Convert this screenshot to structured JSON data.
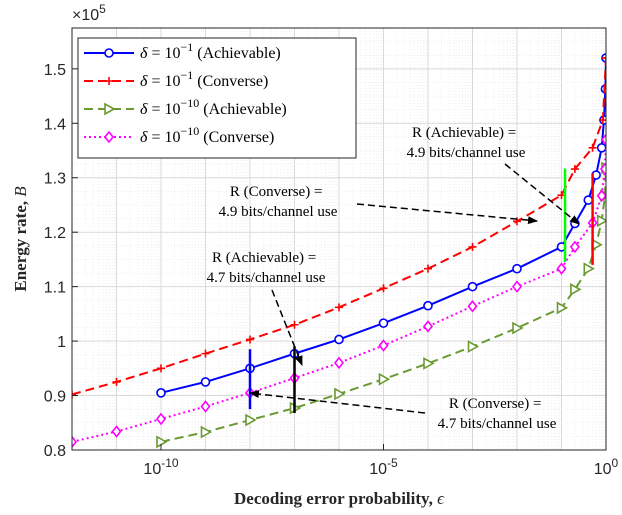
{
  "chart_data": {
    "type": "line",
    "xscale": "log",
    "xlim": [
      1e-12,
      1
    ],
    "ylim": [
      80000,
      157500
    ],
    "xlabel_main": "Decoding error probability, ",
    "xlabel_symbol": "ϵ",
    "ylabel_main": "Energy rate, ",
    "ylabel_symbol": "B",
    "y_multiplier": {
      "base": "×10",
      "exponent": "5"
    },
    "x_ticks": [
      {
        "value": 1e-10,
        "base": "10",
        "exp": "-10"
      },
      {
        "value": 1e-05,
        "base": "10",
        "exp": "-5"
      },
      {
        "value": 1,
        "base": "10",
        "exp": "0"
      }
    ],
    "y_ticks": [
      {
        "value": 80000,
        "label": "0.8"
      },
      {
        "value": 90000,
        "label": "0.9"
      },
      {
        "value": 100000,
        "label": "1"
      },
      {
        "value": 110000,
        "label": "1.1"
      },
      {
        "value": 120000,
        "label": "1.2"
      },
      {
        "value": 130000,
        "label": "1.3"
      },
      {
        "value": 140000,
        "label": "1.4"
      },
      {
        "value": 150000,
        "label": "1.5"
      }
    ],
    "grid": true,
    "legend_position": "top-left",
    "series": [
      {
        "name": "δ = 10^{-1} (Achievable)",
        "legend_symbol": "δ = 10",
        "legend_exp": "−1",
        "legend_suffix": " (Achievable)",
        "color": "#0000ff",
        "dash": "",
        "marker": "circle",
        "x": [
          1e-10,
          1e-09,
          1e-08,
          1e-07,
          1e-06,
          1e-05,
          0.0001,
          0.001,
          0.01,
          0.1,
          0.2,
          0.4,
          0.6,
          0.8,
          0.9,
          0.97,
          1.0
        ],
        "y": [
          90500,
          92500,
          95000,
          97700,
          100300,
          103300,
          106500,
          110000,
          113300,
          117300,
          121600,
          125900,
          130500,
          135500,
          140600,
          146300,
          152000
        ]
      },
      {
        "name": "δ = 10^{-1} (Converse)",
        "legend_symbol": "δ = 10",
        "legend_exp": "−1",
        "legend_suffix": " (Converse)",
        "color": "#ff0000",
        "dash": "9,5",
        "marker": "plus",
        "x": [
          1e-12,
          1e-11,
          1e-10,
          1e-09,
          1e-08,
          1e-07,
          1e-06,
          1e-05,
          0.0001,
          0.001,
          0.01,
          0.1,
          0.2,
          0.5,
          0.85,
          1.0
        ],
        "y": [
          90200,
          92500,
          95000,
          97700,
          100300,
          103000,
          106200,
          109700,
          113300,
          117300,
          122000,
          126800,
          131600,
          135500,
          140600,
          152000
        ]
      },
      {
        "name": "δ = 10^{-10} (Achievable)",
        "legend_symbol": "δ = 10",
        "legend_exp": "−10",
        "legend_suffix": " (Achievable)",
        "color": "#6a9a32",
        "dash": "9,5",
        "marker": "triangle-right",
        "x": [
          1e-10,
          1e-09,
          1e-08,
          1e-07,
          1e-06,
          1e-05,
          0.0001,
          0.001,
          0.01,
          0.1,
          0.2,
          0.4,
          0.6,
          0.8,
          0.95,
          1.0
        ],
        "y": [
          81500,
          83300,
          85500,
          87700,
          90300,
          93000,
          95900,
          99000,
          102400,
          106100,
          109500,
          113300,
          117700,
          122100,
          126700,
          131800
        ]
      },
      {
        "name": "δ = 10^{-10} (Converse)",
        "legend_symbol": "δ = 10",
        "legend_exp": "−10",
        "legend_suffix": " (Converse)",
        "color": "#ff00ff",
        "dash": "2,3",
        "marker": "diamond",
        "x": [
          1e-12,
          1e-11,
          1e-10,
          1e-09,
          1e-08,
          1e-07,
          1e-06,
          1e-05,
          0.0001,
          0.001,
          0.01,
          0.1,
          0.2,
          0.5,
          0.8,
          0.95,
          1.0
        ],
        "y": [
          81500,
          83400,
          85700,
          88000,
          90500,
          93200,
          96000,
          99200,
          102700,
          106400,
          110000,
          113300,
          117300,
          121700,
          126700,
          131600,
          137000
        ]
      }
    ],
    "markers_vertical": [
      {
        "x": 1e-08,
        "y1": 87500,
        "y2": 98500,
        "color": "#0000ff"
      },
      {
        "x": 1e-07,
        "y1": 86800,
        "y2": 99000,
        "color": "#000000"
      },
      {
        "x": 0.12,
        "y1": 114500,
        "y2": 131700,
        "color": "#00ff00"
      },
      {
        "x": 0.5,
        "y1": 114000,
        "y2": 130800,
        "color": "#ff0000"
      }
    ],
    "annotations": [
      {
        "lines": [
          "R (Achievable) =",
          "4.9 bits/channel use"
        ]
      },
      {
        "lines": [
          "R (Converse) =",
          "4.9 bits/channel use"
        ]
      },
      {
        "lines": [
          "R (Achievable) =",
          "4.7 bits/channel use"
        ]
      },
      {
        "lines": [
          "R (Converse) =",
          "4.7 bits/channel use"
        ]
      }
    ]
  }
}
